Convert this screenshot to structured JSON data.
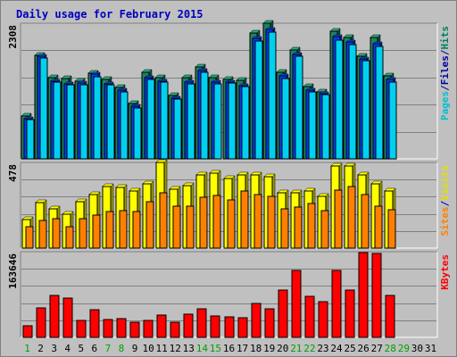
{
  "chart_data": {
    "title": "Daily usage for February 2015",
    "type": "bar",
    "x": [
      "1",
      "2",
      "3",
      "4",
      "5",
      "6",
      "7",
      "8",
      "9",
      "10",
      "11",
      "12",
      "13",
      "14",
      "15",
      "16",
      "17",
      "18",
      "19",
      "20",
      "21",
      "22",
      "23",
      "24",
      "25",
      "26",
      "27",
      "28",
      "29",
      "30",
      "31"
    ],
    "weekend_days": [
      "1",
      "7",
      "8",
      "14",
      "15",
      "21",
      "22",
      "28",
      "29"
    ],
    "panels": [
      {
        "id": "hits",
        "max_label": "2308",
        "ylim": [
          0,
          2308
        ],
        "right_labels": [
          {
            "text": "Pages",
            "color": "#00c0d0"
          },
          {
            "text": "/",
            "color": "#0000a0"
          },
          {
            "text": "Files",
            "color": "#0000a0"
          },
          {
            "text": "/",
            "color": "#0000a0"
          },
          {
            "text": "Hits",
            "color": "#008060"
          }
        ],
        "series": [
          {
            "name": "Hits",
            "color": "#208060",
            "values": [
              735,
              1765,
              1380,
              1365,
              1315,
              1460,
              1345,
              1220,
              945,
              1475,
              1375,
              1075,
              1380,
              1560,
              1375,
              1345,
              1340,
              2135,
              2308,
              1470,
              1855,
              1230,
              1140,
              2170,
              2070,
              1740,
              2060,
              1405,
              null,
              null,
              null
            ]
          },
          {
            "name": "Files",
            "color": "#0040ff",
            "values": [
              690,
              1740,
              1320,
              1280,
              1285,
              1440,
              1280,
              1165,
              895,
              1385,
              1325,
              1040,
              1305,
              1500,
              1305,
              1310,
              1245,
              2050,
              2205,
              1405,
              1780,
              1170,
              1110,
              2080,
              1995,
              1700,
              1960,
              1350,
              null,
              null,
              null
            ]
          },
          {
            "name": "Pages",
            "color": "#00d0f0",
            "values": [
              670,
              1710,
              1300,
              1260,
              1255,
              1400,
              1260,
              1140,
              870,
              1355,
              1300,
              1020,
              1280,
              1470,
              1280,
              1290,
              1225,
              2000,
              2160,
              1365,
              1740,
              1140,
              1090,
              2020,
              1950,
              1670,
              1910,
              1310,
              null,
              null,
              null
            ]
          }
        ]
      },
      {
        "id": "visits",
        "max_label": "478",
        "ylim": [
          0,
          478
        ],
        "right_labels": [
          {
            "text": "Sites",
            "color": "#ff8000"
          },
          {
            "text": "/",
            "color": "#0000a0"
          },
          {
            "text": "Visits",
            "color": "#e0e000"
          }
        ],
        "series": [
          {
            "name": "Visits",
            "color": "#ffff00",
            "values": [
              158,
              255,
              220,
              190,
              258,
              300,
              345,
              340,
              320,
              360,
              478,
              330,
              350,
              408,
              418,
              388,
              408,
              408,
              398,
              310,
              310,
              320,
              290,
              460,
              460,
              408,
              360,
              320,
              null,
              null,
              null
            ]
          },
          {
            "name": "Sites",
            "color": "#ff8000",
            "values": [
              120,
              155,
              165,
              118,
              165,
              185,
              205,
              210,
              205,
              260,
              310,
              235,
              235,
              285,
              295,
              270,
              320,
              300,
              290,
              220,
              230,
              250,
              210,
              325,
              345,
              298,
              235,
              215,
              null,
              null,
              null
            ]
          }
        ]
      },
      {
        "id": "kbytes",
        "max_label": "163646",
        "ylim": [
          0,
          163646
        ],
        "right_labels": [
          {
            "text": "KBytes",
            "color": "#ff0000"
          }
        ],
        "series": [
          {
            "name": "KBytes",
            "color": "#ff0000",
            "values": [
              22000,
              56000,
              80000,
              75000,
              33000,
              53000,
              34000,
              36000,
              29000,
              33000,
              43000,
              29000,
              45000,
              55000,
              41000,
              40000,
              38000,
              64000,
              54000,
              90000,
              127000,
              78000,
              69000,
              127000,
              90000,
              162000,
              160000,
              80000,
              null,
              null,
              null
            ]
          }
        ]
      }
    ]
  }
}
